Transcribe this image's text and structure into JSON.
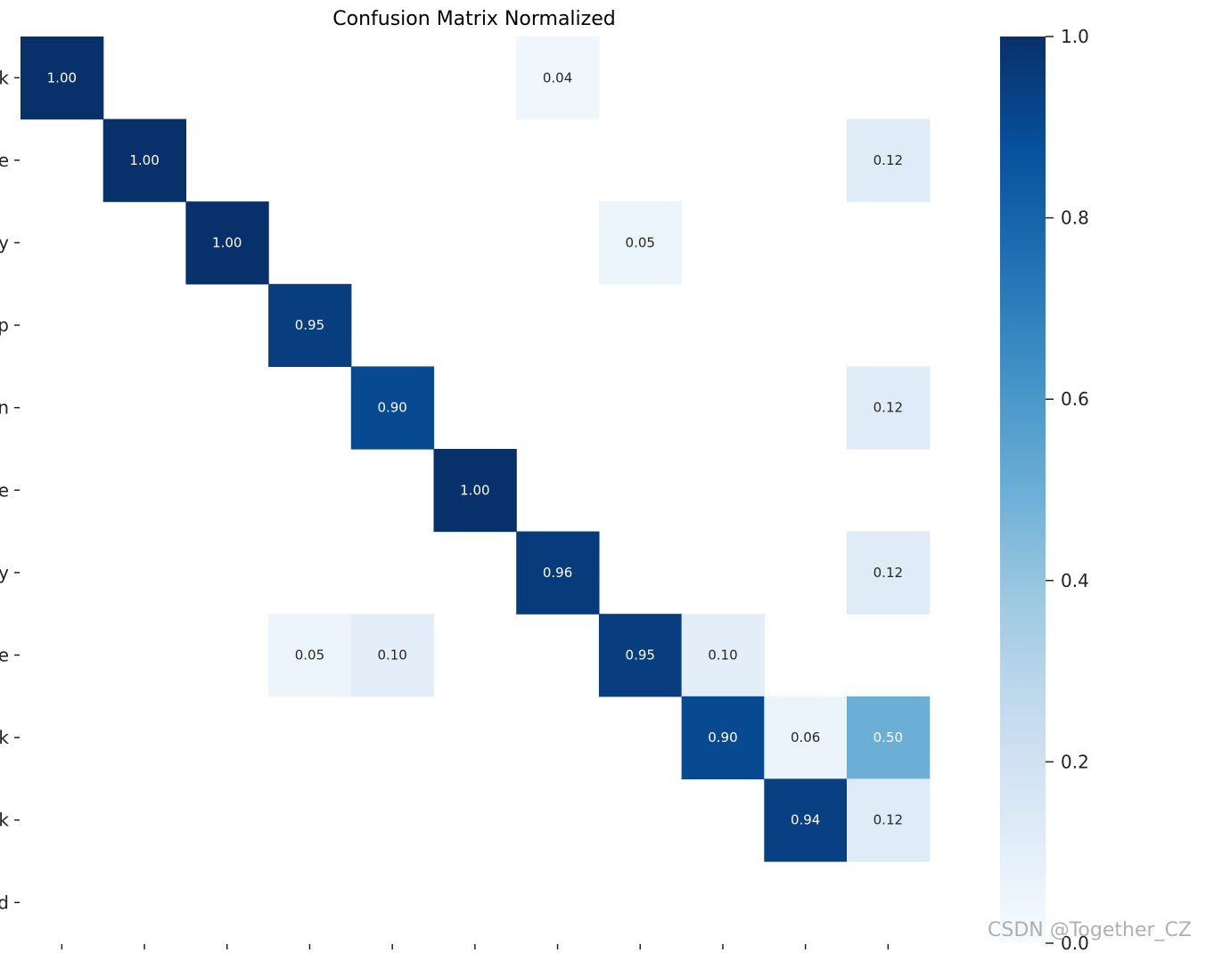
{
  "chart_data": {
    "type": "heatmap",
    "title": "Confusion Matrix Normalized",
    "row_labels": [
      "k",
      "e",
      "y",
      "p",
      "n",
      "e",
      "y",
      "e",
      "k",
      "k",
      "d"
    ],
    "column_labels": [],
    "colormap": "Blues",
    "colorbar": {
      "min": 0.0,
      "max": 1.0,
      "ticks": [
        "0.0",
        "0.2",
        "0.4",
        "0.6",
        "0.8",
        "1.0"
      ]
    },
    "cells": [
      {
        "row": 0,
        "col": 0,
        "value": 1.0
      },
      {
        "row": 0,
        "col": 6,
        "value": 0.04
      },
      {
        "row": 1,
        "col": 1,
        "value": 1.0
      },
      {
        "row": 1,
        "col": 10,
        "value": 0.12
      },
      {
        "row": 2,
        "col": 2,
        "value": 1.0
      },
      {
        "row": 2,
        "col": 7,
        "value": 0.05
      },
      {
        "row": 3,
        "col": 3,
        "value": 0.95
      },
      {
        "row": 4,
        "col": 4,
        "value": 0.9
      },
      {
        "row": 4,
        "col": 10,
        "value": 0.12
      },
      {
        "row": 5,
        "col": 5,
        "value": 1.0
      },
      {
        "row": 6,
        "col": 6,
        "value": 0.96
      },
      {
        "row": 6,
        "col": 10,
        "value": 0.12
      },
      {
        "row": 7,
        "col": 3,
        "value": 0.05
      },
      {
        "row": 7,
        "col": 4,
        "value": 0.1
      },
      {
        "row": 7,
        "col": 7,
        "value": 0.95
      },
      {
        "row": 7,
        "col": 8,
        "value": 0.1
      },
      {
        "row": 8,
        "col": 8,
        "value": 0.9
      },
      {
        "row": 8,
        "col": 9,
        "value": 0.06
      },
      {
        "row": 8,
        "col": 10,
        "value": 0.5
      },
      {
        "row": 9,
        "col": 9,
        "value": 0.94
      },
      {
        "row": 9,
        "col": 10,
        "value": 0.12
      }
    ],
    "blank_below": 0.005,
    "grid": false
  },
  "watermark": "CSDN @Together_CZ"
}
